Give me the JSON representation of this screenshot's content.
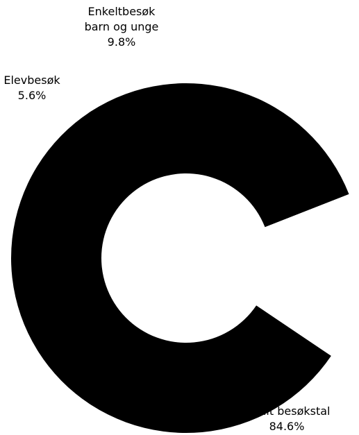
{
  "chart_data": {
    "type": "pie",
    "donut": true,
    "title": "",
    "slices": [
      {
        "label_lines": [
          "Totalt besøkstal"
        ],
        "value_text": "84.6%",
        "value": 84.6,
        "color": "#000000"
      },
      {
        "label_lines": [
          "Elevbesøk"
        ],
        "value_text": "5.6%",
        "value": 5.6,
        "color": "#ffffff"
      },
      {
        "label_lines": [
          "Enkeltbesøk",
          "barn og unge"
        ],
        "value_text": "9.8%",
        "value": 9.8,
        "color": "#ffffff"
      }
    ]
  }
}
